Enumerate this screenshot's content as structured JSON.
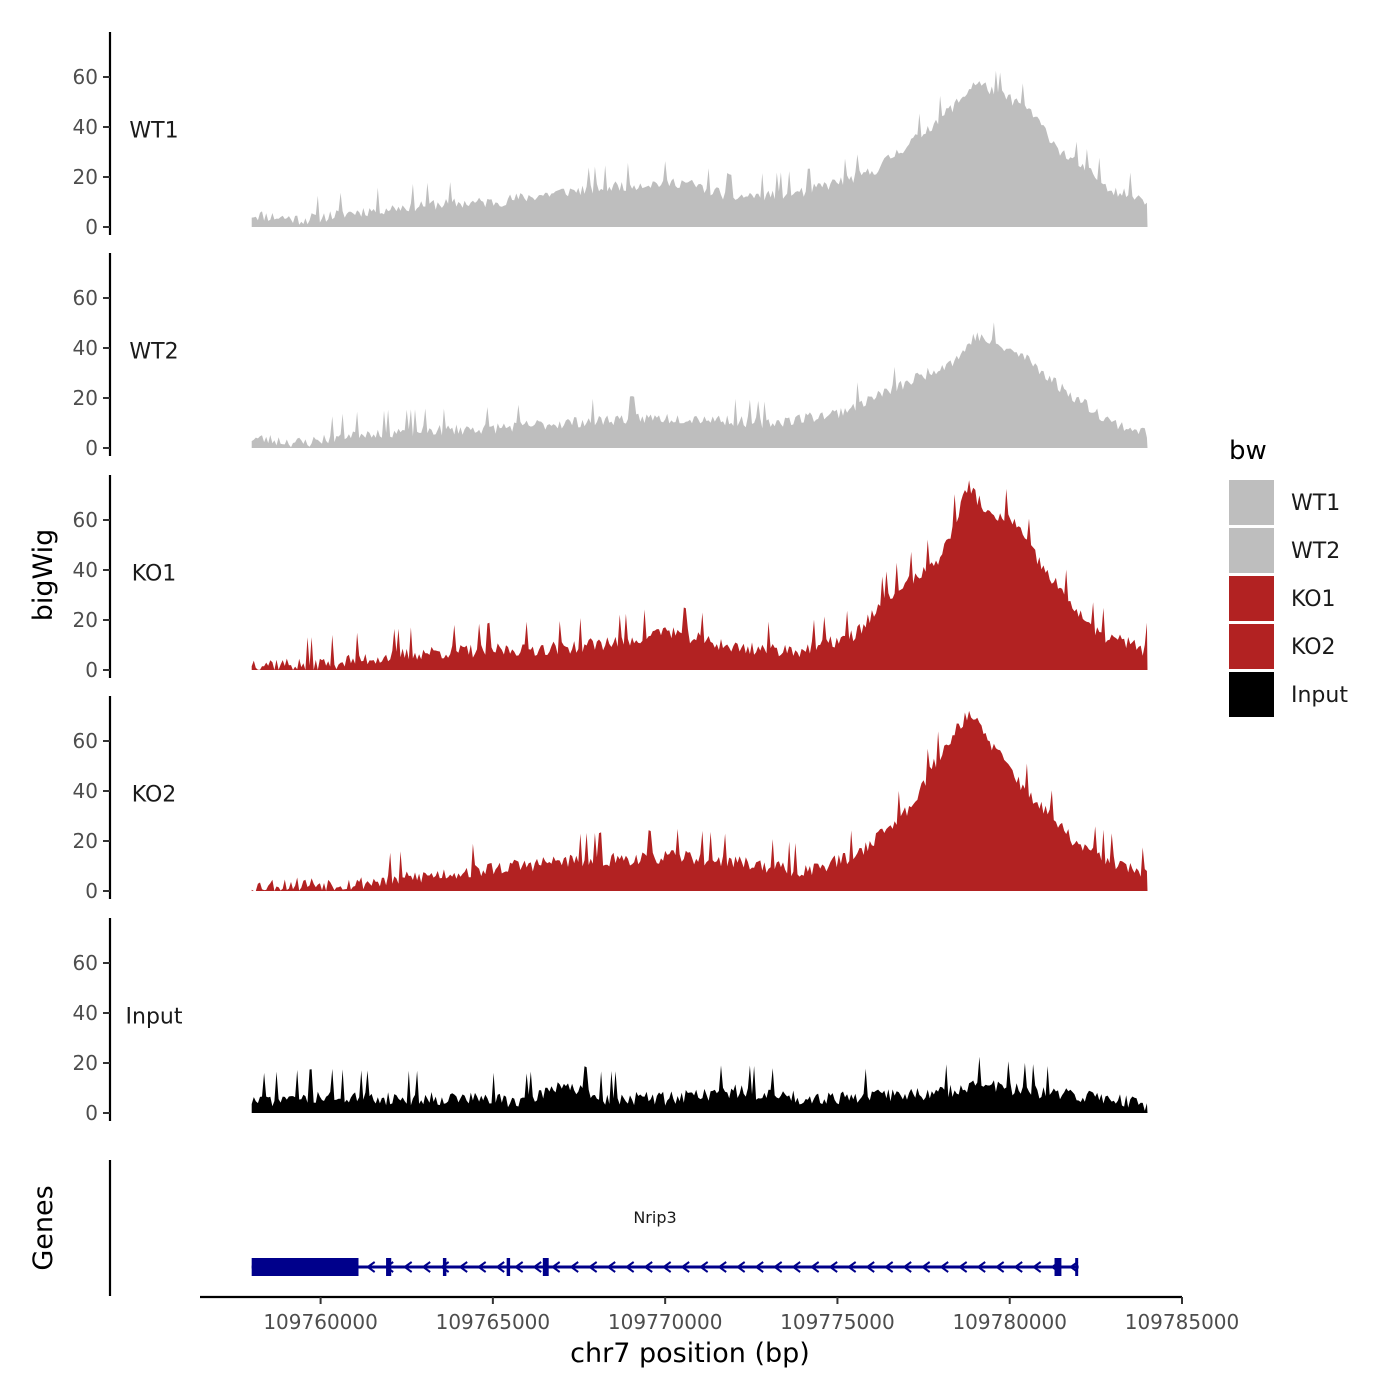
{
  "chart_data": {
    "type": "area",
    "chromosome": "chr7",
    "y_axis_title": "bigWig",
    "x_axis_title": "chr7 position (bp)",
    "xlim": [
      109756500,
      109785000
    ],
    "data_range": [
      109758000,
      109784000
    ],
    "ylim": [
      0,
      78
    ],
    "y_ticks": [
      0,
      20,
      40,
      60
    ],
    "x_ticks": [
      {
        "value": 109760000,
        "label": "109760000"
      },
      {
        "value": 109765000,
        "label": "109765000"
      },
      {
        "value": 109770000,
        "label": "109770000"
      },
      {
        "value": 109775000,
        "label": "109775000"
      },
      {
        "value": 109780000,
        "label": "109780000"
      },
      {
        "value": 109785000,
        "label": "109785000"
      }
    ],
    "tracks": [
      {
        "name": "WT1",
        "color": "#BEBEBE",
        "seed": 11,
        "base": 3,
        "slope": 10,
        "noise": 4,
        "peak": {
          "center": 109779000,
          "width": 2300,
          "height": 44
        },
        "points": [
          [
            109758000,
            5
          ],
          [
            109759500,
            3
          ],
          [
            109761000,
            6
          ],
          [
            109763000,
            9
          ],
          [
            109765000,
            10
          ],
          [
            109767000,
            14
          ],
          [
            109769000,
            17
          ],
          [
            109770500,
            18
          ],
          [
            109772000,
            12
          ],
          [
            109774000,
            14
          ],
          [
            109776000,
            22
          ],
          [
            109777500,
            38
          ],
          [
            109778500,
            50
          ],
          [
            109779000,
            58
          ],
          [
            109780500,
            48
          ],
          [
            109781500,
            30
          ],
          [
            109783000,
            15
          ],
          [
            109784000,
            11
          ]
        ]
      },
      {
        "name": "WT2",
        "color": "#BEBEBE",
        "seed": 23,
        "base": 3,
        "slope": 9,
        "noise": 4,
        "peak": {
          "center": 109779000,
          "width": 2400,
          "height": 34
        },
        "points": [
          [
            109758000,
            4
          ],
          [
            109759500,
            2
          ],
          [
            109761000,
            6
          ],
          [
            109763000,
            7
          ],
          [
            109765000,
            8
          ],
          [
            109767000,
            10
          ],
          [
            109769000,
            12
          ],
          [
            109771000,
            12
          ],
          [
            109773000,
            10
          ],
          [
            109775000,
            14
          ],
          [
            109777000,
            26
          ],
          [
            109778500,
            36
          ],
          [
            109779000,
            45
          ],
          [
            109780500,
            36
          ],
          [
            109781500,
            24
          ],
          [
            109783000,
            10
          ],
          [
            109784000,
            6
          ]
        ]
      },
      {
        "name": "KO1",
        "color": "#B22222",
        "seed": 37,
        "base": 2,
        "slope": 12,
        "noise": 5,
        "peak": {
          "center": 109779000,
          "width": 2100,
          "height": 58
        },
        "points": [
          [
            109758000,
            3
          ],
          [
            109759500,
            2
          ],
          [
            109761000,
            4
          ],
          [
            109763000,
            7
          ],
          [
            109765000,
            8
          ],
          [
            109767000,
            9
          ],
          [
            109769000,
            12
          ],
          [
            109770000,
            16
          ],
          [
            109772000,
            9
          ],
          [
            109774000,
            8
          ],
          [
            109775500,
            14
          ],
          [
            109776500,
            30
          ],
          [
            109778000,
            45
          ],
          [
            109778800,
            74
          ],
          [
            109779500,
            60
          ],
          [
            109780000,
            62
          ],
          [
            109781000,
            40
          ],
          [
            109782500,
            15
          ],
          [
            109784000,
            8
          ]
        ]
      },
      {
        "name": "KO2",
        "color": "#B22222",
        "seed": 53,
        "base": 2,
        "slope": 11,
        "noise": 5,
        "peak": {
          "center": 109778900,
          "width": 2000,
          "height": 56
        },
        "points": [
          [
            109758000,
            2
          ],
          [
            109759500,
            3
          ],
          [
            109761000,
            3
          ],
          [
            109763000,
            6
          ],
          [
            109765000,
            9
          ],
          [
            109767000,
            12
          ],
          [
            109769000,
            13
          ],
          [
            109770500,
            14
          ],
          [
            109772000,
            12
          ],
          [
            109774000,
            8
          ],
          [
            109775500,
            14
          ],
          [
            109777000,
            32
          ],
          [
            109778000,
            55
          ],
          [
            109778800,
            72
          ],
          [
            109779500,
            58
          ],
          [
            109780500,
            40
          ],
          [
            109782000,
            18
          ],
          [
            109784000,
            6
          ]
        ]
      },
      {
        "name": "Input",
        "color": "#000000",
        "seed": 71,
        "base": 5,
        "slope": 0,
        "noise": 5,
        "peak": {
          "center": 109778900,
          "width": 300,
          "height": 6
        },
        "points": [
          [
            109758000,
            5
          ],
          [
            109760000,
            7
          ],
          [
            109762000,
            6
          ],
          [
            109764000,
            6
          ],
          [
            109766000,
            5
          ],
          [
            109767000,
            12
          ],
          [
            109768000,
            6
          ],
          [
            109770000,
            6
          ],
          [
            109772000,
            9
          ],
          [
            109774000,
            6
          ],
          [
            109776000,
            7
          ],
          [
            109778000,
            8
          ],
          [
            109779000,
            12
          ],
          [
            109781000,
            8
          ],
          [
            109783000,
            6
          ],
          [
            109784000,
            3
          ]
        ]
      }
    ],
    "legend": {
      "title": "bw",
      "entries": [
        {
          "label": "WT1",
          "color": "#BEBEBE"
        },
        {
          "label": "WT2",
          "color": "#BEBEBE"
        },
        {
          "label": "KO1",
          "color": "#B22222"
        },
        {
          "label": "KO2",
          "color": "#B22222"
        },
        {
          "label": "Input",
          "color": "#000000"
        }
      ]
    },
    "gene_track": {
      "title": "Genes",
      "gene": "Nrip3",
      "color": "#00008B",
      "strand": "-",
      "start": 109758000,
      "end": 109782000,
      "exons": [
        {
          "start": 109758000,
          "end": 109761100
        },
        {
          "start": 109761900,
          "end": 109762050
        },
        {
          "start": 109763550,
          "end": 109763650
        },
        {
          "start": 109765400,
          "end": 109765500
        },
        {
          "start": 109766450,
          "end": 109766620
        },
        {
          "start": 109781300,
          "end": 109781500
        },
        {
          "start": 109781900,
          "end": 109781960
        }
      ]
    }
  }
}
